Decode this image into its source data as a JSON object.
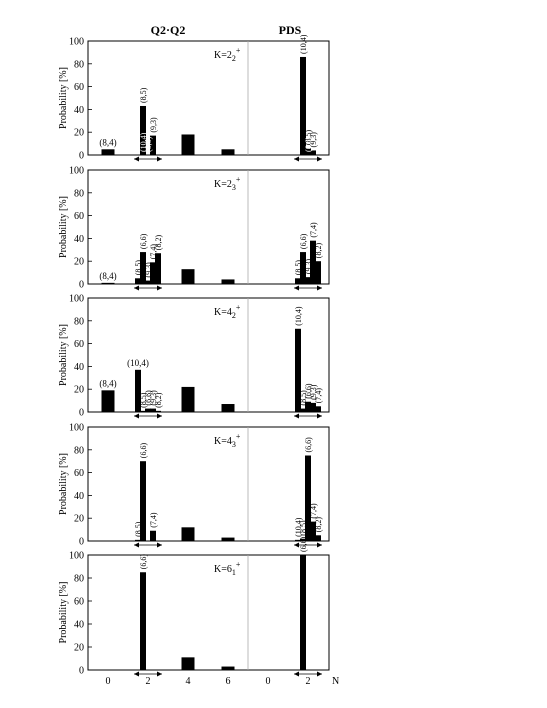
{
  "headers": {
    "left": "Q2·Q2",
    "right": "PDS"
  },
  "chart_data": [
    {
      "type": "bar",
      "title": "",
      "ylabel": "Probability [%]",
      "ylim": [
        0,
        100
      ],
      "yticks": [
        0,
        20,
        40,
        60,
        80,
        100
      ],
      "xlabel": "N",
      "k_label": {
        "base": "K=2",
        "sub": "2",
        "sup": "+"
      },
      "series": [
        {
          "name": "Q2·Q2",
          "bars": [
            {
              "n": 0,
              "value": 5,
              "label": "(8,4)",
              "orient": "h"
            },
            {
              "n": 1.75,
              "value": 43,
              "label": "(8,5)",
              "orient": "v"
            },
            {
              "n": 2.25,
              "value": 17,
              "label": "(9,3)",
              "orient": "v"
            }
          ],
          "inner_labels": [
            {
              "n": 1.75,
              "text": "(10,4)"
            },
            {
              "n": 2.0,
              "text": "(6,6)"
            }
          ],
          "singles": [
            {
              "n": 4,
              "value": 18
            },
            {
              "n": 6,
              "value": 5
            }
          ]
        },
        {
          "name": "PDS",
          "bars": [
            {
              "n": 1.75,
              "value": 86,
              "label": "(10,4)",
              "orient": "v"
            },
            {
              "n": 2.0,
              "value": 6,
              "label": "(8,5)",
              "orient": "v"
            },
            {
              "n": 2.25,
              "value": 4,
              "label": "(9,3)",
              "orient": "v"
            }
          ],
          "inner_labels": [
            {
              "n": 2.0,
              "text": "(6,6)"
            }
          ],
          "singles": []
        }
      ]
    },
    {
      "type": "bar",
      "title": "",
      "ylabel": "Probability [%]",
      "ylim": [
        0,
        100
      ],
      "yticks": [
        0,
        20,
        40,
        60,
        80,
        100
      ],
      "xlabel": "N",
      "k_label": {
        "base": "K=2",
        "sub": "3",
        "sup": "+"
      },
      "series": [
        {
          "name": "Q2·Q2",
          "bars": [
            {
              "n": 0,
              "value": 1,
              "label": "(8,4)",
              "orient": "h"
            },
            {
              "n": 1.5,
              "value": 5,
              "label": "(8,5)",
              "orient": "v"
            },
            {
              "n": 1.75,
              "value": 28,
              "label": "(6,6)",
              "orient": "v"
            },
            {
              "n": 2.0,
              "value": 3,
              "label": "(9,3)",
              "orient": "v"
            },
            {
              "n": 2.25,
              "value": 19,
              "label": "(7,4)",
              "orient": "v"
            },
            {
              "n": 2.5,
              "value": 27,
              "label": "(8,2)",
              "orient": "v"
            }
          ],
          "inner_labels": [],
          "singles": [
            {
              "n": 4,
              "value": 13
            },
            {
              "n": 6,
              "value": 4
            }
          ]
        },
        {
          "name": "PDS",
          "bars": [
            {
              "n": 1.5,
              "value": 5,
              "label": "(8,5)",
              "orient": "v"
            },
            {
              "n": 1.75,
              "value": 28,
              "label": "(6,6)",
              "orient": "v"
            },
            {
              "n": 2.0,
              "value": 6,
              "label": "(9,3)",
              "orient": "v"
            },
            {
              "n": 2.25,
              "value": 38,
              "label": "(7,4)",
              "orient": "v"
            },
            {
              "n": 2.5,
              "value": 20,
              "label": "(8,2)",
              "orient": "v"
            }
          ],
          "inner_labels": [],
          "singles": []
        }
      ]
    },
    {
      "type": "bar",
      "title": "",
      "ylabel": "Probability [%]",
      "ylim": [
        0,
        100
      ],
      "yticks": [
        0,
        20,
        40,
        60,
        80,
        100
      ],
      "xlabel": "N",
      "k_label": {
        "base": "K=4",
        "sub": "2",
        "sup": "+"
      },
      "series": [
        {
          "name": "Q2·Q2",
          "bars": [
            {
              "n": 0,
              "value": 19,
              "label": "(8,4)",
              "orient": "h"
            },
            {
              "n": 1.5,
              "value": 37,
              "label": "(10,4)",
              "orient": "h"
            },
            {
              "n": 1.75,
              "value": 1,
              "label": "(8,5)",
              "orient": "v"
            },
            {
              "n": 2.0,
              "value": 3,
              "label": "(6,6)",
              "orient": "v"
            },
            {
              "n": 2.25,
              "value": 3,
              "label": "(9,3)",
              "orient": "v"
            },
            {
              "n": 2.5,
              "value": 1,
              "label": "(8,2)",
              "orient": "v"
            }
          ],
          "inner_labels": [],
          "singles": [
            {
              "n": 4,
              "value": 22
            },
            {
              "n": 6,
              "value": 7
            }
          ]
        },
        {
          "name": "PDS",
          "bars": [
            {
              "n": 1.5,
              "value": 73,
              "label": "(10,4)",
              "orient": "v"
            },
            {
              "n": 1.75,
              "value": 3,
              "label": "(8,5)",
              "orient": "v"
            },
            {
              "n": 2.0,
              "value": 9,
              "label": "(6,6)",
              "orient": "v"
            },
            {
              "n": 2.25,
              "value": 8,
              "label": "(9,3)",
              "orient": "v"
            },
            {
              "n": 2.5,
              "value": 5,
              "label": "(7,4)",
              "orient": "v"
            }
          ],
          "inner_labels": [],
          "singles": []
        }
      ]
    },
    {
      "type": "bar",
      "title": "",
      "ylabel": "Probability [%]",
      "ylim": [
        0,
        100
      ],
      "yticks": [
        0,
        20,
        40,
        60,
        80,
        100
      ],
      "xlabel": "N",
      "k_label": {
        "base": "K=4",
        "sub": "3",
        "sup": "+"
      },
      "series": [
        {
          "name": "Q2·Q2",
          "bars": [
            {
              "n": 1.5,
              "value": 1,
              "label": "(8,5)",
              "orient": "v"
            },
            {
              "n": 1.75,
              "value": 70,
              "label": "(6,6)",
              "orient": "v"
            },
            {
              "n": 2.25,
              "value": 9,
              "label": "(7,4)",
              "orient": "v"
            }
          ],
          "inner_labels": [],
          "singles": [
            {
              "n": 4,
              "value": 12
            },
            {
              "n": 6,
              "value": 3
            }
          ]
        },
        {
          "name": "PDS",
          "bars": [
            {
              "n": 1.5,
              "value": 1,
              "label": "(10,4)",
              "orient": "v"
            },
            {
              "n": 1.75,
              "value": 2,
              "label": "(8,5)",
              "orient": "v"
            },
            {
              "n": 2.0,
              "value": 75,
              "label": "(6,6)",
              "orient": "v"
            },
            {
              "n": 2.25,
              "value": 17,
              "label": "(7,4)",
              "orient": "v"
            },
            {
              "n": 2.5,
              "value": 5,
              "label": "(8,2)",
              "orient": "v"
            }
          ],
          "inner_labels": [],
          "singles": []
        }
      ]
    },
    {
      "type": "bar",
      "title": "",
      "ylabel": "Probability [%]",
      "ylim": [
        0,
        100
      ],
      "yticks": [
        0,
        20,
        40,
        60,
        80,
        100
      ],
      "xlabel": "N",
      "xticks_left": [
        0,
        2,
        4,
        6
      ],
      "xticks_right": [
        0,
        2
      ],
      "k_label": {
        "base": "K=6",
        "sub": "1",
        "sup": "+"
      },
      "series": [
        {
          "name": "Q2·Q2",
          "bars": [
            {
              "n": 1.75,
              "value": 85,
              "label": "(6,6)",
              "orient": "v"
            }
          ],
          "inner_labels": [],
          "singles": [
            {
              "n": 4,
              "value": 11
            },
            {
              "n": 6,
              "value": 3
            }
          ]
        },
        {
          "name": "PDS",
          "bars": [
            {
              "n": 1.75,
              "value": 100,
              "label": "(6,6)",
              "orient": "v"
            }
          ],
          "inner_labels": [],
          "singles": []
        }
      ]
    }
  ]
}
